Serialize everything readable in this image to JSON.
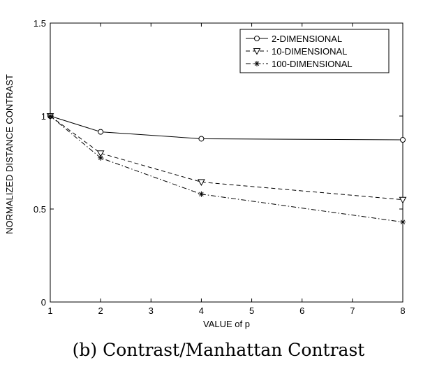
{
  "chart_data": {
    "type": "line",
    "x": [
      1,
      2,
      4,
      8
    ],
    "xlabel": "VALUE of p",
    "ylabel": "NORMALIZED DISTANCE CONTRAST",
    "xlim": [
      1,
      8
    ],
    "ylim": [
      0,
      1.5
    ],
    "xticks": [
      1,
      2,
      3,
      4,
      5,
      6,
      7,
      8
    ],
    "yticks": [
      0,
      0.5,
      1,
      1.5
    ],
    "ytick_labels": [
      "0",
      "0.5",
      "1",
      "1.5"
    ],
    "grid": false,
    "legend_position": "top-right",
    "series": [
      {
        "name": "2-DIMENSIONAL",
        "values": [
          1.0,
          0.915,
          0.878,
          0.872
        ],
        "line_style": "solid",
        "marker": "circle",
        "color": "#000000"
      },
      {
        "name": "10-DIMENSIONAL",
        "values": [
          1.0,
          0.8,
          0.645,
          0.55
        ],
        "line_style": "dashed",
        "marker": "triangle-down",
        "color": "#000000"
      },
      {
        "name": "100-DIMENSIONAL",
        "values": [
          1.0,
          0.775,
          0.58,
          0.43
        ],
        "line_style": "dash-dot",
        "marker": "asterisk",
        "color": "#000000"
      }
    ]
  },
  "caption": "(b) Contrast/Manhattan Contrast"
}
